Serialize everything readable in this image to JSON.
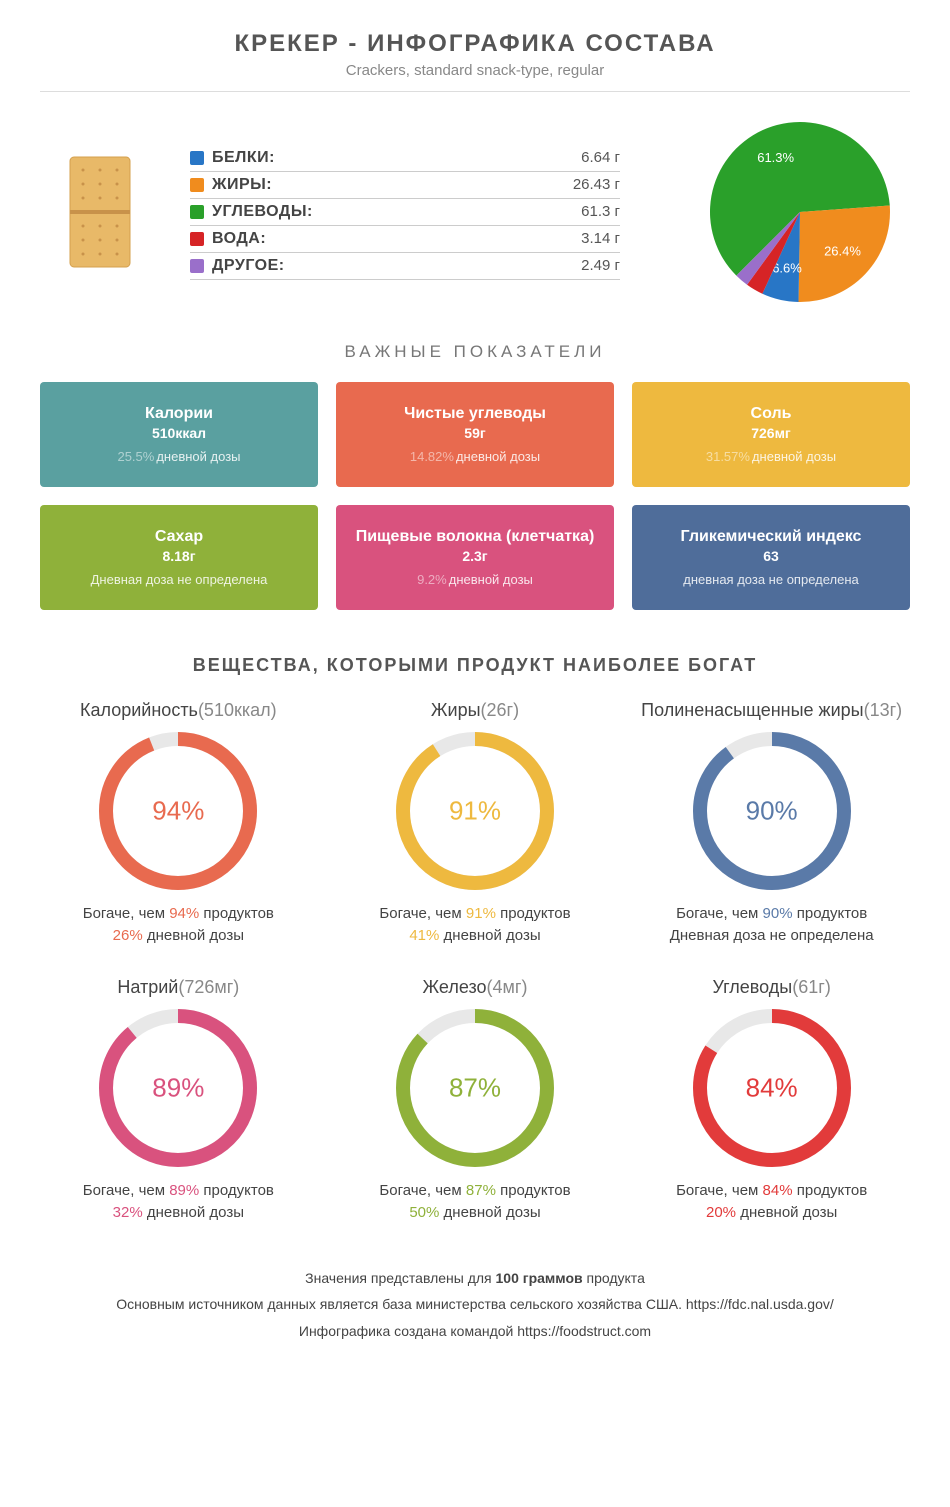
{
  "header": {
    "title": "КРЕКЕР - ИНФОГРАФИКА СОСТАВА",
    "subtitle": "Crackers, standard snack-type, regular"
  },
  "macros": {
    "rows": [
      {
        "label": "БЕЛКИ:",
        "value": "6.64 г",
        "color": "#2876c6"
      },
      {
        "label": "ЖИРЫ:",
        "value": "26.43 г",
        "color": "#f08c1e"
      },
      {
        "label": "УГЛЕВОДЫ:",
        "value": "61.3 г",
        "color": "#2aa02a"
      },
      {
        "label": "ВОДА:",
        "value": "3.14 г",
        "color": "#d62426"
      },
      {
        "label": "ДРУГОЕ:",
        "value": "2.49 г",
        "color": "#9a6fca"
      }
    ]
  },
  "pie": {
    "slices": [
      {
        "pct": 61.3,
        "color": "#2aa02a",
        "label": "61.3%"
      },
      {
        "pct": 26.4,
        "color": "#f08c1e",
        "label": "26.4%"
      },
      {
        "pct": 6.6,
        "color": "#2876c6",
        "label": "6.6%"
      },
      {
        "pct": 3.14,
        "color": "#d62426",
        "label": ""
      },
      {
        "pct": 2.49,
        "color": "#9a6fca",
        "label": ""
      }
    ],
    "radius": 90,
    "start_angle_deg": 135
  },
  "indicators_title": "ВАЖНЫЕ ПОКАЗАТЕЛИ",
  "cards": [
    {
      "title": "Калории",
      "value": "510ккал",
      "pct": "25.5%",
      "sub": "дневной дозы",
      "bg": "#5aa0a0"
    },
    {
      "title": "Чистые углеводы",
      "value": "59г",
      "pct": "14.82%",
      "sub": "дневной дозы",
      "bg": "#e86a4f"
    },
    {
      "title": "Соль",
      "value": "726мг",
      "pct": "31.57%",
      "sub": "дневной дозы",
      "bg": "#eeb93f"
    },
    {
      "title": "Сахар",
      "value": "8.18г",
      "pct": "",
      "sub": "Дневная доза не определена",
      "bg": "#8fb13a"
    },
    {
      "title": "Пищевые волокна (клетчатка)",
      "value": "2.3г",
      "pct": "9.2%",
      "sub": "дневной дозы",
      "bg": "#d9527e"
    },
    {
      "title": "Гликемический индекс",
      "value": "63",
      "pct": "",
      "sub": "дневная доза не определена",
      "bg": "#4f6d9a"
    }
  ],
  "rich_title": "ВЕЩЕСТВА, КОТОРЫМИ ПРОДУКТ НАИБОЛЕЕ БОГАТ",
  "rings": [
    {
      "name": "Калорийность",
      "paren": "(510ккал)",
      "pct": 94,
      "color": "#e86a4f",
      "line1_pre": "Богаче, чем ",
      "line1_hl": "94%",
      "line1_post": " продуктов",
      "line2_hl": "26%",
      "line2_post": " дневной дозы"
    },
    {
      "name": "Жиры",
      "paren": "(26г)",
      "pct": 91,
      "color": "#eeb93f",
      "line1_pre": "Богаче, чем ",
      "line1_hl": "91%",
      "line1_post": " продуктов",
      "line2_hl": "41%",
      "line2_post": " дневной дозы"
    },
    {
      "name": "Полиненасыщенные жиры",
      "paren": "(13г)",
      "pct": 90,
      "color": "#5a7aa8",
      "line1_pre": "Богаче, чем ",
      "line1_hl": "90%",
      "line1_post": " продуктов",
      "line2_hl": "",
      "line2_post": "Дневная доза не определена"
    },
    {
      "name": "Натрий",
      "paren": "(726мг)",
      "pct": 89,
      "color": "#d9527e",
      "line1_pre": "Богаче, чем ",
      "line1_hl": "89%",
      "line1_post": " продуктов",
      "line2_hl": "32%",
      "line2_post": " дневной дозы"
    },
    {
      "name": "Железо",
      "paren": "(4мг)",
      "pct": 87,
      "color": "#8fb13a",
      "line1_pre": "Богаче, чем ",
      "line1_hl": "87%",
      "line1_post": " продуктов",
      "line2_hl": "50%",
      "line2_post": " дневной дозы"
    },
    {
      "name": "Углеводы",
      "paren": "(61г)",
      "pct": 84,
      "color": "#e23b3b",
      "line1_pre": "Богаче, чем ",
      "line1_hl": "84%",
      "line1_post": " продуктов",
      "line2_hl": "20%",
      "line2_post": " дневной дозы"
    }
  ],
  "ring_style": {
    "outer_r": 72,
    "stroke": 14,
    "bg_stroke": "#e8e8e8"
  },
  "footer": {
    "l1_pre": "Значения представлены для ",
    "l1_b": "100 граммов",
    "l1_post": " продукта",
    "l2": "Основным источником данных является база министерства сельского хозяйства США. https://fdc.nal.usda.gov/",
    "l3": "Инфографика создана командой https://foodstruct.com"
  }
}
